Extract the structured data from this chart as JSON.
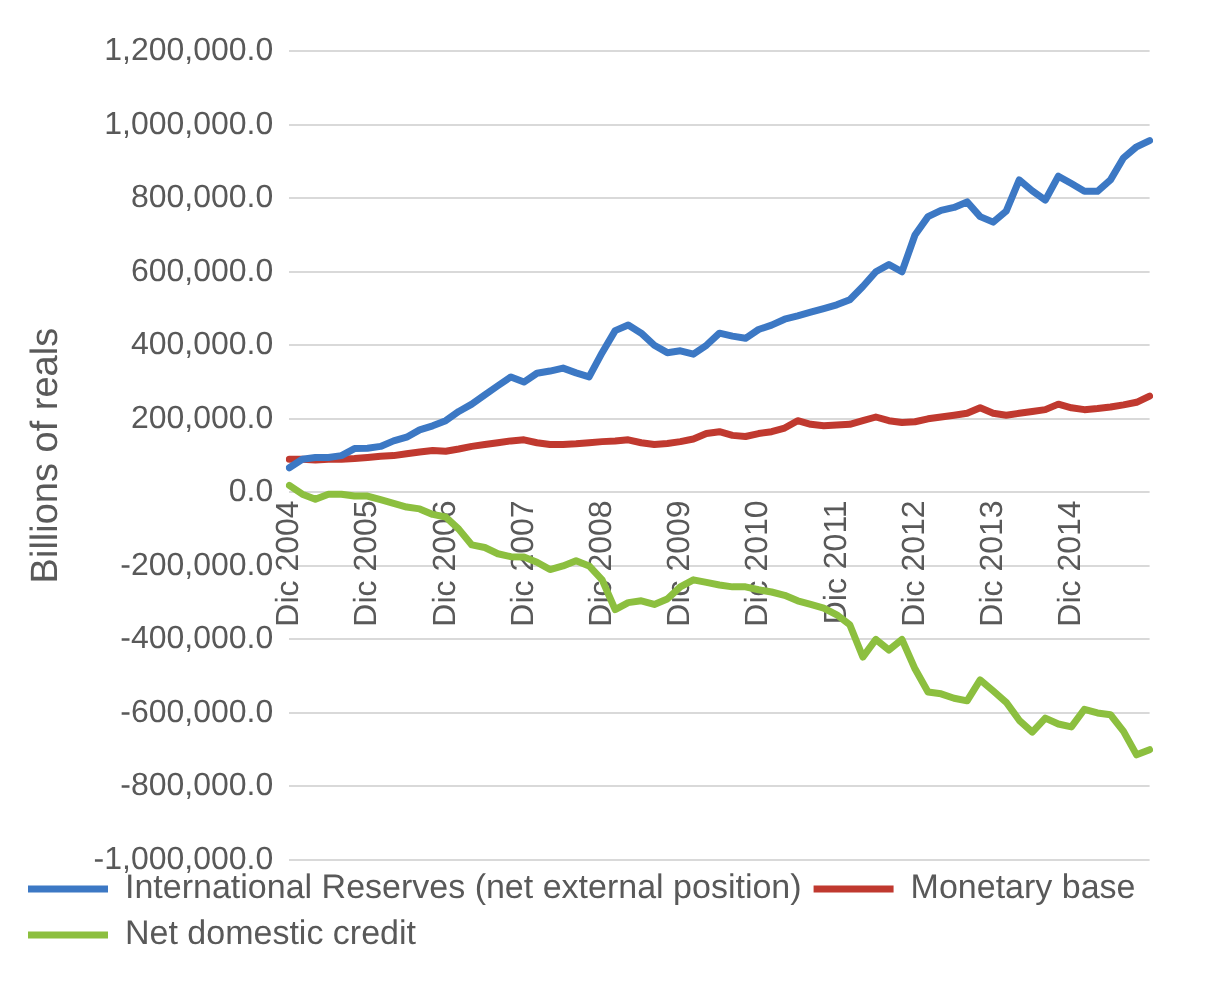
{
  "chart_data": {
    "type": "line",
    "ylabel": "Billions of reals",
    "categories": [
      "Dic 2004",
      null,
      null,
      null,
      null,
      null,
      "Dic 2005",
      null,
      null,
      null,
      null,
      null,
      "Dic 2006",
      null,
      null,
      null,
      null,
      null,
      "Dic 2007",
      null,
      null,
      null,
      null,
      null,
      "Dic 2008",
      null,
      null,
      null,
      null,
      null,
      "Dic 2009",
      null,
      null,
      null,
      null,
      null,
      "Dic 2010",
      null,
      null,
      null,
      null,
      null,
      "Dic 2011",
      null,
      null,
      null,
      null,
      null,
      "Dic 2012",
      null,
      null,
      null,
      null,
      null,
      "Dic 2013",
      null,
      null,
      null,
      null,
      null,
      "Dic 2014",
      null,
      null,
      null,
      null,
      null,
      null
    ],
    "series": [
      {
        "name": "International Reserves (net external position)",
        "color": "#3c78c4",
        "values": [
          67000,
          90000,
          95000,
          95000,
          100000,
          119000,
          120000,
          125000,
          140000,
          150000,
          170000,
          181000,
          195000,
          220000,
          240000,
          265000,
          290000,
          314000,
          300000,
          324000,
          330000,
          338000,
          325000,
          314000,
          380000,
          440000,
          455000,
          433000,
          400000,
          380000,
          385000,
          376000,
          400000,
          433000,
          425000,
          419000,
          443000,
          455000,
          471000,
          480000,
          490000,
          500000,
          510000,
          524000,
          560000,
          600000,
          620000,
          600000,
          700000,
          750000,
          767000,
          775000,
          790000,
          750000,
          735000,
          765000,
          850000,
          820000,
          795000,
          860000,
          840000,
          819000,
          819000,
          850000,
          910000,
          940000,
          957000
        ]
      },
      {
        "name": "Monetary base",
        "color": "#c0392f",
        "values": [
          90000,
          90000,
          88000,
          90000,
          90000,
          92000,
          95000,
          98000,
          100000,
          105000,
          110000,
          114000,
          112000,
          118000,
          125000,
          130000,
          135000,
          140000,
          143000,
          135000,
          130000,
          130000,
          132000,
          135000,
          138000,
          140000,
          143000,
          135000,
          130000,
          133000,
          138000,
          145000,
          160000,
          165000,
          155000,
          152000,
          160000,
          165000,
          175000,
          195000,
          185000,
          181000,
          183000,
          185000,
          195000,
          205000,
          195000,
          190000,
          192000,
          200000,
          205000,
          210000,
          215000,
          230000,
          215000,
          210000,
          215000,
          220000,
          225000,
          240000,
          230000,
          225000,
          228000,
          232000,
          238000,
          245000,
          262000
        ]
      },
      {
        "name": "Net domestic credit",
        "color": "#8cbf3f",
        "values": [
          19000,
          -5000,
          -19000,
          -5000,
          -5000,
          -10000,
          -10000,
          -20000,
          -30000,
          -40000,
          -45000,
          -60000,
          -67000,
          -100000,
          -143000,
          -150000,
          -167000,
          -175000,
          -176000,
          -190000,
          -210000,
          -200000,
          -186000,
          -200000,
          -238000,
          -319000,
          -300000,
          -295000,
          -305000,
          -290000,
          -257000,
          -238000,
          -245000,
          -252000,
          -257000,
          -257000,
          -265000,
          -271000,
          -280000,
          -295000,
          -305000,
          -315000,
          -333000,
          -360000,
          -448000,
          -400000,
          -429000,
          -400000,
          -480000,
          -543000,
          -548000,
          -560000,
          -567000,
          -510000,
          -540000,
          -571000,
          -620000,
          -652000,
          -614000,
          -630000,
          -638000,
          -590000,
          -600000,
          -605000,
          -650000,
          -714000,
          -700000
        ]
      }
    ],
    "ylim": [
      -1000000,
      1200000
    ],
    "yticks": [
      {
        "value": -1000000,
        "label": "-1,000,000.0"
      },
      {
        "value": -800000,
        "label": "-800,000.0"
      },
      {
        "value": -600000,
        "label": "-600,000.0"
      },
      {
        "value": -400000,
        "label": "-400,000.0"
      },
      {
        "value": -200000,
        "label": "-200,000.0"
      },
      {
        "value": 0,
        "label": "0.0"
      },
      {
        "value": 200000,
        "label": "200,000.0"
      },
      {
        "value": 400000,
        "label": "400,000.0"
      },
      {
        "value": 600000,
        "label": "600,000.0"
      },
      {
        "value": 800000,
        "label": "800,000.0"
      },
      {
        "value": 1000000,
        "label": "1,000,000.0"
      },
      {
        "value": 1200000,
        "label": "1,200,000.0"
      }
    ],
    "grid": "y",
    "legend": "bottom",
    "marker": "none",
    "line_style": "solid"
  }
}
